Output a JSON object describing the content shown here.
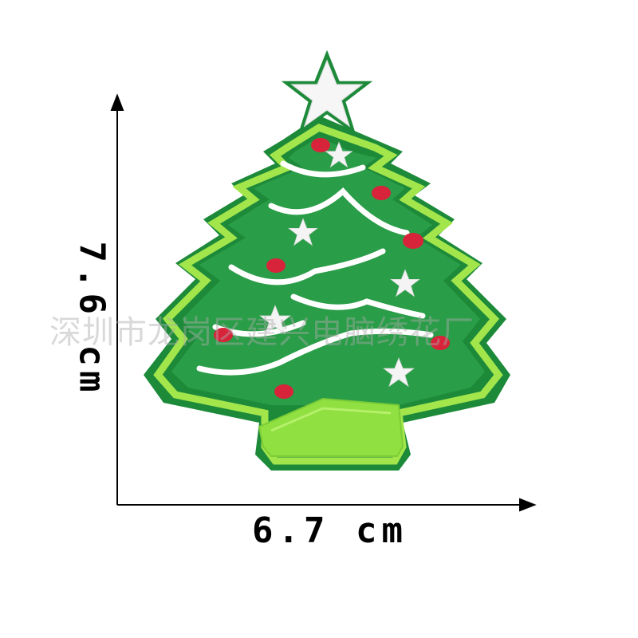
{
  "image": {
    "subject": "embroidered christmas tree patch",
    "colors": {
      "tree_dark": "#1f8f3d",
      "tree_mid": "#2a9d48",
      "border_light": "#9be34a",
      "garland": "#ffffff",
      "ornament": "#d8243a",
      "star": "#f4f4f4",
      "pot": "#8fe040",
      "background": "#ffffff"
    }
  },
  "dimensions": {
    "width_label": "6.7 cm",
    "height_label": "7.6 cm"
  },
  "watermark": {
    "text": "深圳市龙岗区建兴电脑绣花厂"
  },
  "icons": {
    "arrow_right": "arrow-right-icon",
    "arrow_up": "arrow-up-icon"
  }
}
